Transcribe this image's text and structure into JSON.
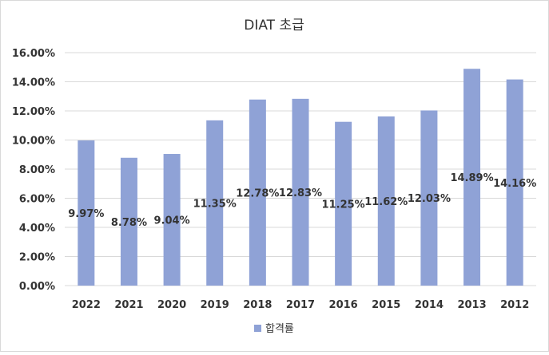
{
  "chart_data": {
    "type": "bar",
    "title": "DIAT 초급",
    "xlabel": "",
    "ylabel": "",
    "categories": [
      "2022",
      "2021",
      "2020",
      "2019",
      "2018",
      "2017",
      "2016",
      "2015",
      "2014",
      "2013",
      "2012"
    ],
    "series": [
      {
        "name": "합격률",
        "values": [
          9.97,
          8.78,
          9.04,
          11.35,
          12.78,
          12.83,
          11.25,
          11.62,
          12.03,
          14.89,
          14.16
        ],
        "data_labels": [
          "9.97%",
          "8.78%",
          "9.04%",
          "11.35%",
          "12.78%",
          "12.83%",
          "11.25%",
          "11.62%",
          "12.03%",
          "14.89%",
          "14.16%"
        ],
        "color": "#8FA2D6"
      }
    ],
    "ylim": [
      0,
      16
    ],
    "yticks": [
      0,
      2,
      4,
      6,
      8,
      10,
      12,
      14,
      16
    ],
    "ytick_labels": [
      "0.00%",
      "2.00%",
      "4.00%",
      "6.00%",
      "8.00%",
      "10.00%",
      "12.00%",
      "14.00%",
      "16.00%"
    ],
    "grid": true,
    "legend_position": "bottom",
    "colors": {
      "bar": "#8FA2D6",
      "grid": "#d9d9d9",
      "text": "#333333",
      "frame": "#d9d9d9"
    }
  }
}
